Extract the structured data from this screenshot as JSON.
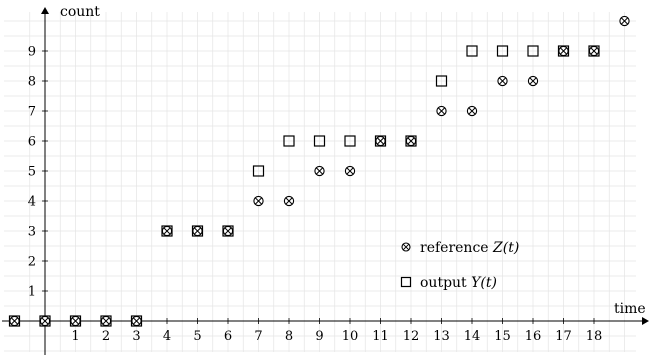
{
  "chart_data": {
    "type": "scatter",
    "xlabel": "time",
    "ylabel": "count",
    "xlim": [
      -1,
      20
    ],
    "ylim": [
      -1,
      10
    ],
    "x_ticks": [
      1,
      2,
      3,
      4,
      5,
      6,
      7,
      8,
      9,
      10,
      11,
      12,
      13,
      14,
      15,
      16,
      17,
      18
    ],
    "y_ticks": [
      1,
      2,
      3,
      4,
      5,
      6,
      7,
      8,
      9
    ],
    "grid": true,
    "legend_position": "bottom-right",
    "series": [
      {
        "name": "reference",
        "legend_math": "Z(t)",
        "marker": "circle-cross",
        "x": [
          -1,
          0,
          1,
          2,
          3,
          4,
          5,
          6,
          7,
          8,
          9,
          10,
          11,
          12,
          13,
          14,
          15,
          16,
          17,
          18,
          19
        ],
        "y": [
          0,
          0,
          0,
          0,
          0,
          3,
          3,
          3,
          4,
          4,
          5,
          5,
          6,
          6,
          7,
          7,
          8,
          8,
          9,
          9,
          10
        ]
      },
      {
        "name": "output",
        "legend_math": "Y(t)",
        "marker": "square",
        "x": [
          -1,
          0,
          1,
          2,
          3,
          4,
          5,
          6,
          7,
          8,
          9,
          10,
          11,
          12,
          13,
          14,
          15,
          16,
          17,
          18
        ],
        "y": [
          0,
          0,
          0,
          0,
          0,
          3,
          3,
          3,
          5,
          6,
          6,
          6,
          6,
          6,
          8,
          9,
          9,
          9,
          9,
          9
        ]
      }
    ]
  }
}
